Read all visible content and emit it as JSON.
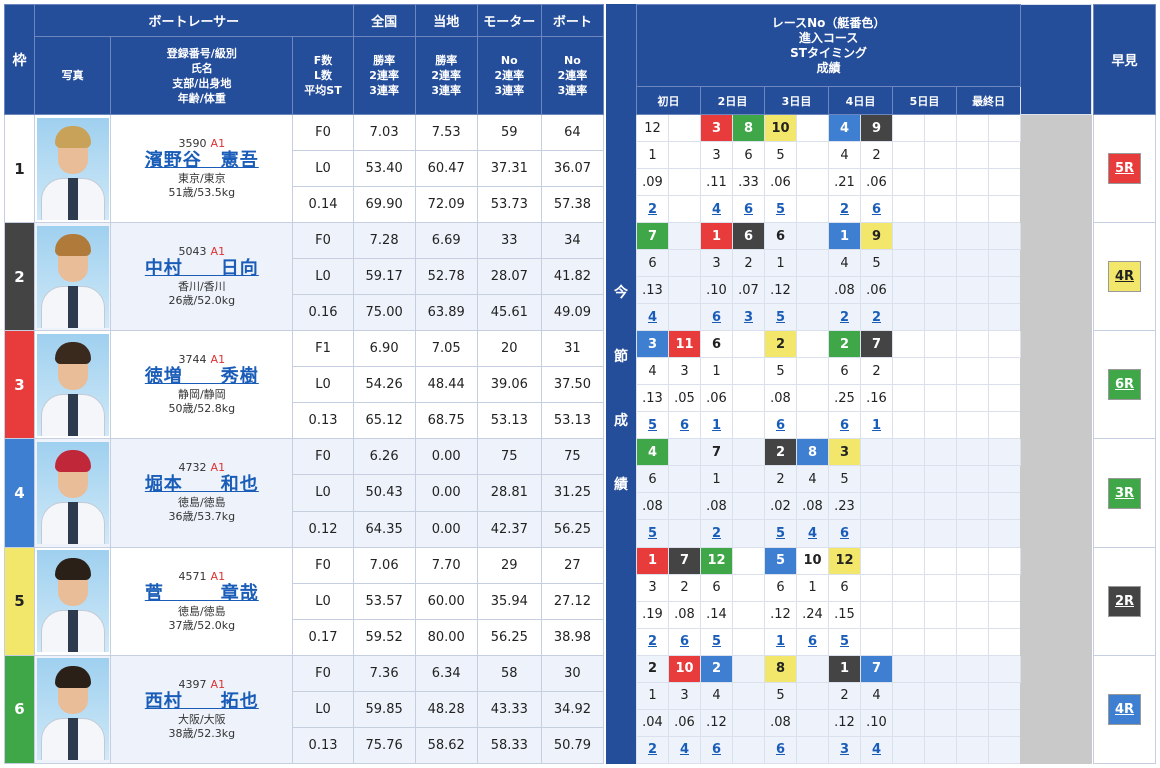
{
  "header": {
    "waku": "枠",
    "racer": "ボートレーサー",
    "photo": "写真",
    "info": "登録番号/級別\n氏名\n支部/出身地\n年齢/体重",
    "fl": "F数\nL数\n平均ST",
    "zenkoku": "全国",
    "zenkoku_sub": "勝率\n2連率\n3連率",
    "touchi": "当地",
    "touchi_sub": "勝率\n2連率\n3連率",
    "motor": "モーター",
    "motor_sub": "No\n2連率\n3連率",
    "boat": "ボート",
    "boat_sub": "No\n2連率\n3連率",
    "konsetsu": [
      "今",
      "節",
      "成",
      "績"
    ],
    "race_info": "レースNo（艇番色）\n進入コース\nSTタイミング\n成績",
    "days": [
      "初日",
      "2日目",
      "3日目",
      "4日目",
      "5日目",
      "最終日"
    ],
    "hayami": "早見"
  },
  "racers": [
    {
      "waku": "1",
      "reg": "3590",
      "cls": "A1",
      "name": "濱野谷　憲吾",
      "place": "東京/東京",
      "age": "51歳/53.5kg",
      "f": "F0",
      "l": "L0",
      "st": "0.14",
      "zw": "7.03",
      "z2": "53.40",
      "z3": "69.90",
      "tw": "7.53",
      "t2": "60.47",
      "t3": "72.09",
      "mno": "59",
      "m2": "37.31",
      "m3": "53.73",
      "bno": "64",
      "b2": "36.07",
      "b3": "57.38",
      "early": "5R",
      "hair": "#c9a25a",
      "races": [
        [
          "12",
          "1",
          ".09",
          "2"
        ],
        [
          "",
          "",
          "",
          ""
        ],
        [
          "3",
          "3",
          ".11",
          "4"
        ],
        [
          "8",
          "6",
          ".33",
          "6"
        ],
        [
          "10",
          "5",
          ".06",
          "5"
        ],
        [
          "",
          "",
          "",
          ""
        ],
        [
          "4",
          "4",
          ".21",
          "2"
        ],
        [
          "9",
          "2",
          ".06",
          "6"
        ],
        [
          "",
          "",
          "",
          ""
        ],
        [
          "",
          "",
          "",
          ""
        ],
        [
          "",
          "",
          "",
          ""
        ],
        [
          "",
          "",
          "",
          ""
        ]
      ],
      "rc": [
        "c1",
        "x",
        "c3",
        "c6",
        "c5",
        "x",
        "c4",
        "c2",
        "x",
        "x",
        "x",
        "x"
      ]
    },
    {
      "waku": "2",
      "reg": "5043",
      "cls": "A1",
      "name": "中村　　日向",
      "place": "香川/香川",
      "age": "26歳/52.0kg",
      "f": "F0",
      "l": "L0",
      "st": "0.16",
      "zw": "7.28",
      "z2": "59.17",
      "z3": "75.00",
      "tw": "6.69",
      "t2": "52.78",
      "t3": "63.89",
      "mno": "33",
      "m2": "28.07",
      "m3": "45.61",
      "bno": "34",
      "b2": "41.82",
      "b3": "49.09",
      "early": "4R",
      "hair": "#b07a3a",
      "races": [
        [
          "7",
          "6",
          ".13",
          "4"
        ],
        [
          "",
          "",
          "",
          ""
        ],
        [
          "1",
          "3",
          ".10",
          "6"
        ],
        [
          "6",
          "2",
          ".07",
          "3"
        ],
        [
          "6",
          "1",
          ".12",
          "5"
        ],
        [
          "",
          "",
          "",
          ""
        ],
        [
          "1",
          "4",
          ".08",
          "2"
        ],
        [
          "9",
          "5",
          ".06",
          "2"
        ],
        [
          "",
          "",
          "",
          ""
        ],
        [
          "",
          "",
          "",
          ""
        ],
        [
          "",
          "",
          "",
          ""
        ],
        [
          "",
          "",
          "",
          ""
        ]
      ],
      "rc": [
        "c6",
        "x",
        "c3",
        "c2",
        "c1b",
        "x",
        "c4",
        "c5",
        "x",
        "x",
        "x",
        "x"
      ]
    },
    {
      "waku": "3",
      "reg": "3744",
      "cls": "A1",
      "name": "徳増　　秀樹",
      "place": "静岡/静岡",
      "age": "50歳/52.8kg",
      "f": "F1",
      "l": "L0",
      "st": "0.13",
      "zw": "6.90",
      "z2": "54.26",
      "z3": "65.12",
      "tw": "7.05",
      "t2": "48.44",
      "t3": "68.75",
      "mno": "20",
      "m2": "39.06",
      "m3": "53.13",
      "bno": "31",
      "b2": "37.50",
      "b3": "53.13",
      "early": "6R",
      "hair": "#3a2a1e",
      "races": [
        [
          "3",
          "4",
          ".13",
          "5"
        ],
        [
          "11",
          "3",
          ".05",
          "6"
        ],
        [
          "6",
          "1",
          ".06",
          "1"
        ],
        [
          "",
          "",
          "",
          ""
        ],
        [
          "2",
          "5",
          ".08",
          "6"
        ],
        [
          "",
          "",
          "",
          ""
        ],
        [
          "2",
          "6",
          ".25",
          "6"
        ],
        [
          "7",
          "2",
          ".16",
          "1"
        ],
        [
          "",
          "",
          "",
          ""
        ],
        [
          "",
          "",
          "",
          ""
        ],
        [
          "",
          "",
          "",
          ""
        ],
        [
          "",
          "",
          "",
          ""
        ]
      ],
      "rc": [
        "c4",
        "c3",
        "c1b",
        "x",
        "c5",
        "x",
        "c6",
        "c2",
        "x",
        "x",
        "x",
        "x"
      ]
    },
    {
      "waku": "4",
      "reg": "4732",
      "cls": "A1",
      "name": "堀本　　和也",
      "place": "徳島/徳島",
      "age": "36歳/53.7kg",
      "f": "F0",
      "l": "L0",
      "st": "0.12",
      "zw": "6.26",
      "z2": "50.43",
      "z3": "64.35",
      "tw": "0.00",
      "t2": "0.00",
      "t3": "0.00",
      "mno": "75",
      "m2": "28.81",
      "m3": "42.37",
      "bno": "75",
      "b2": "31.25",
      "b3": "56.25",
      "early": "3R",
      "hair": "#c0283a",
      "races": [
        [
          "4",
          "6",
          ".08",
          "5"
        ],
        [
          "",
          "",
          "",
          ""
        ],
        [
          "7",
          "1",
          ".08",
          "2"
        ],
        [
          "",
          "",
          "",
          ""
        ],
        [
          "2",
          "2",
          ".02",
          "5"
        ],
        [
          "8",
          "4",
          ".08",
          "4"
        ],
        [
          "3",
          "5",
          ".23",
          "6"
        ],
        [
          "",
          "",
          "",
          ""
        ],
        [
          "",
          "",
          "",
          ""
        ],
        [
          "",
          "",
          "",
          ""
        ],
        [
          "",
          "",
          "",
          ""
        ],
        [
          "",
          "",
          "",
          ""
        ]
      ],
      "rc": [
        "c6",
        "x",
        "c1b",
        "x",
        "c2",
        "c4",
        "c5",
        "x",
        "x",
        "x",
        "x",
        "x"
      ]
    },
    {
      "waku": "5",
      "reg": "4571",
      "cls": "A1",
      "name": "菅　　　章哉",
      "place": "徳島/徳島",
      "age": "37歳/52.0kg",
      "f": "F0",
      "l": "L0",
      "st": "0.17",
      "zw": "7.06",
      "z2": "53.57",
      "z3": "59.52",
      "tw": "7.70",
      "t2": "60.00",
      "t3": "80.00",
      "mno": "29",
      "m2": "35.94",
      "m3": "56.25",
      "bno": "27",
      "b2": "27.12",
      "b3": "38.98",
      "early": "2R",
      "hair": "#2a2018",
      "races": [
        [
          "1",
          "3",
          ".19",
          "2"
        ],
        [
          "7",
          "2",
          ".08",
          "6"
        ],
        [
          "12",
          "6",
          ".14",
          "5"
        ],
        [
          "",
          "",
          "",
          ""
        ],
        [
          "5",
          "6",
          ".12",
          "1"
        ],
        [
          "10",
          "1",
          ".24",
          "6"
        ],
        [
          "12",
          "6",
          ".15",
          "5"
        ],
        [
          "",
          "",
          "",
          ""
        ],
        [
          "",
          "",
          "",
          ""
        ],
        [
          "",
          "",
          "",
          ""
        ],
        [
          "",
          "",
          "",
          ""
        ],
        [
          "",
          "",
          "",
          ""
        ]
      ],
      "rc": [
        "c3",
        "c2",
        "c6",
        "x",
        "c4",
        "c1b",
        "c5",
        "x",
        "x",
        "x",
        "x",
        "x"
      ]
    },
    {
      "waku": "6",
      "reg": "4397",
      "cls": "A1",
      "name": "西村　　拓也",
      "place": "大阪/大阪",
      "age": "38歳/52.3kg",
      "f": "F0",
      "l": "L0",
      "st": "0.13",
      "zw": "7.36",
      "z2": "59.85",
      "z3": "75.76",
      "tw": "6.34",
      "t2": "48.28",
      "t3": "58.62",
      "mno": "58",
      "m2": "43.33",
      "m3": "58.33",
      "bno": "30",
      "b2": "34.92",
      "b3": "50.79",
      "early": "4R",
      "hair": "#2a2018",
      "races": [
        [
          "2",
          "1",
          ".04",
          "2"
        ],
        [
          "10",
          "3",
          ".06",
          "4"
        ],
        [
          "2",
          "4",
          ".12",
          "6"
        ],
        [
          "",
          "",
          "",
          ""
        ],
        [
          "8",
          "5",
          ".08",
          "6"
        ],
        [
          "",
          "",
          "",
          ""
        ],
        [
          "1",
          "2",
          ".12",
          "3"
        ],
        [
          "7",
          "4",
          ".10",
          "4"
        ],
        [
          "",
          "",
          "",
          ""
        ],
        [
          "",
          "",
          "",
          ""
        ],
        [
          "",
          "",
          "",
          ""
        ],
        [
          "",
          "",
          "",
          ""
        ]
      ],
      "rc": [
        "c1b",
        "c3",
        "c4",
        "x",
        "c5",
        "x",
        "c2",
        "c4",
        "x",
        "x",
        "x",
        "x"
      ]
    }
  ],
  "colors": {
    "header": "#244d9a",
    "waku1": "#ffffff",
    "waku2": "#444444",
    "waku3": "#e83c3c",
    "waku4": "#3f7fd1",
    "waku5": "#f2e76a",
    "waku6": "#3fa748"
  }
}
